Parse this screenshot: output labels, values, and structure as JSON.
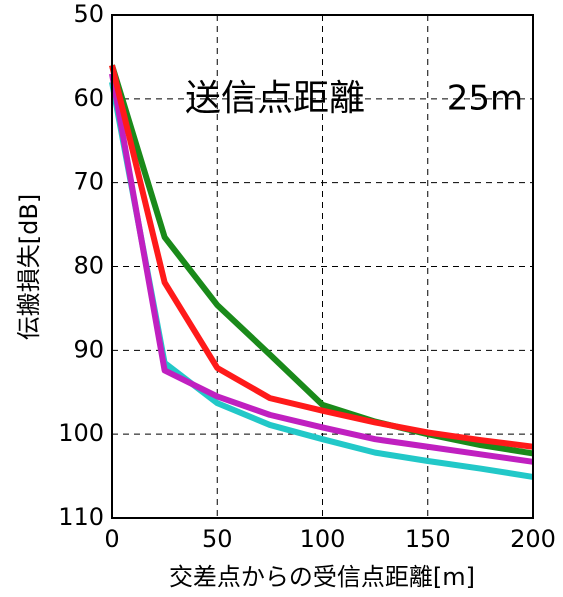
{
  "chart_data": {
    "type": "line",
    "x_label": "交差点からの受信点距離[m]",
    "y_label": "伝搬損失[dB]",
    "annotations": [
      "送信点距離",
      "25m"
    ],
    "x": [
      0,
      25,
      50,
      75,
      100,
      125,
      150,
      175,
      200
    ],
    "series": [
      {
        "color": "#22c8c8",
        "values": [
          58,
          91.5,
          96.3,
          98.9,
          100.6,
          102.2,
          103.2,
          104.1,
          105.1
        ]
      },
      {
        "color": "#c020c0",
        "values": [
          57,
          92.4,
          95.5,
          97.7,
          99.2,
          100.6,
          101.5,
          102.4,
          103.3
        ]
      },
      {
        "color": "#1a8a1a",
        "values": [
          56,
          76.5,
          84.6,
          90.5,
          96.5,
          98.5,
          100,
          101.3,
          102.3
        ]
      },
      {
        "color": "#ff1a1a",
        "values": [
          56,
          81.9,
          92.1,
          95.7,
          97.2,
          98.6,
          99.8,
          100.7,
          101.5
        ]
      }
    ],
    "xlim": [
      0,
      200
    ],
    "xticks": [
      0,
      50,
      100,
      150,
      200
    ],
    "ylim": [
      50,
      110
    ],
    "yticks": [
      50,
      60,
      70,
      80,
      90,
      100,
      110
    ],
    "y_inverted": true,
    "grid": true
  }
}
